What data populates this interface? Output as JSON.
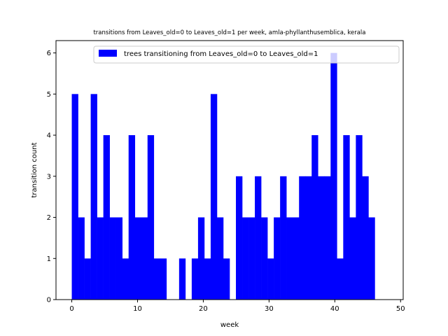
{
  "chart_data": {
    "type": "bar",
    "title": "transitions from Leaves_old=0 to Leaves_old=1 per week, amla-phyllanthusemblica, kerala",
    "xlabel": "week",
    "ylabel": "transition count",
    "xlim": [
      -2.4,
      50.4
    ],
    "ylim": [
      0,
      6.3
    ],
    "xticks": [
      0,
      10,
      20,
      30,
      40,
      50
    ],
    "yticks": [
      0,
      1,
      2,
      3,
      4,
      5,
      6
    ],
    "bin_width": 0.96,
    "color": "#0000ff",
    "legend": {
      "placement": "top-right",
      "entries": [
        "trees transitioning from Leaves_old=0 to Leaves_old=1"
      ]
    },
    "series": [
      {
        "name": "trees transitioning from Leaves_old=0 to Leaves_old=1",
        "x": [
          0,
          0.96,
          1.92,
          2.88,
          3.84,
          4.8,
          5.76,
          6.72,
          7.68,
          8.64,
          9.6,
          10.56,
          11.52,
          12.48,
          13.44,
          14.4,
          15.36,
          16.32,
          17.28,
          18.24,
          19.2,
          20.16,
          21.12,
          22.08,
          23.04,
          24,
          24.96,
          25.92,
          26.88,
          27.84,
          28.8,
          29.76,
          30.72,
          31.68,
          32.64,
          33.6,
          34.56,
          35.52,
          36.48,
          37.44,
          38.4,
          39.36,
          40.32,
          41.28,
          42.24,
          43.2,
          44.16,
          45.12,
          46.08,
          47.04
        ],
        "values": [
          5,
          2,
          1,
          5,
          2,
          4,
          2,
          2,
          1,
          4,
          2,
          2,
          4,
          1,
          1,
          0,
          0,
          1,
          0,
          1,
          2,
          1,
          5,
          2,
          1,
          0,
          3,
          2,
          2,
          3,
          2,
          1,
          2,
          3,
          2,
          2,
          3,
          3,
          4,
          3,
          3,
          6,
          1,
          4,
          2,
          4,
          3,
          2,
          0,
          0
        ]
      }
    ]
  }
}
